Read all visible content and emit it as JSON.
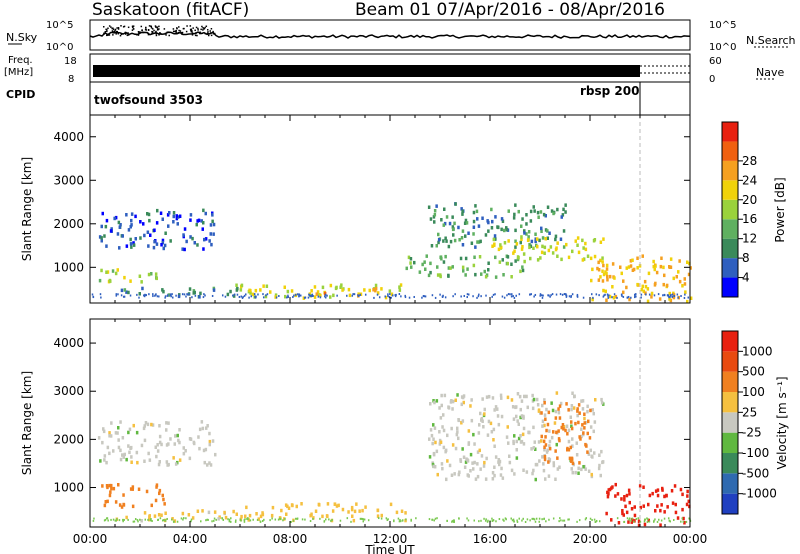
{
  "header": {
    "title": "Saskatoon (fitACF)",
    "beam_info": "Beam 01   07/Apr/2016 - 08/Apr/2016"
  },
  "left_labels": {
    "nsky": "N.Sky",
    "freq_line1": "Freq.",
    "freq_line2": "[MHz]",
    "cpid": "CPID"
  },
  "right_labels": {
    "nsearch": "N.Search",
    "nave": "Nave"
  },
  "strip_ticks": {
    "nsky_left": [
      "10^5",
      "10^0"
    ],
    "freq_left": [
      "18",
      "8"
    ],
    "nsearch_right": [
      "10^5",
      "10^0"
    ],
    "nave_right": [
      "60",
      "0"
    ]
  },
  "cpid_labels": [
    "twofsound 3503",
    "rbsp 200"
  ],
  "colorbars": {
    "power": {
      "label": "Power [dB]",
      "ticks": [
        "4",
        "8",
        "12",
        "16",
        "20",
        "24",
        "28"
      ],
      "colors": [
        "#0000ff",
        "#2f5fbf",
        "#3a8a5a",
        "#5fb060",
        "#9ad23c",
        "#f0d20a",
        "#f5a020",
        "#f06010",
        "#e82010"
      ]
    },
    "velocity": {
      "label": "Velocity [m s⁻¹]",
      "ticks": [
        "1000",
        "500",
        "100",
        "25",
        "-25",
        "-100",
        "-500",
        "-1000"
      ],
      "colors": [
        "#2040c0",
        "#2f6ab0",
        "#3a8a5a",
        "#60b840",
        "#c8c8c0",
        "#f5c040",
        "#f08020",
        "#e84a10",
        "#e82010"
      ]
    }
  },
  "chart_data": [
    {
      "type": "heatmap",
      "name": "power",
      "ylabel": "Slant Range [km]",
      "xlabel": "",
      "xlim": [
        "00:00",
        "24:00"
      ],
      "ylim": [
        180,
        4500
      ],
      "yticks": [
        1000,
        2000,
        3000,
        4000
      ],
      "blobs": [
        {
          "t0": 0.3,
          "t1": 5.0,
          "r0": 1450,
          "r1": 2350,
          "level": 6
        },
        {
          "t0": 0.3,
          "t1": 2.8,
          "r0": 700,
          "r1": 1000,
          "level": 18
        },
        {
          "t0": 1.0,
          "t1": 6.0,
          "r0": 350,
          "r1": 560,
          "level": 9
        },
        {
          "t0": 5.8,
          "t1": 12.6,
          "r0": 330,
          "r1": 650,
          "level": 20
        },
        {
          "t0": 9.0,
          "t1": 11.5,
          "r0": 380,
          "r1": 560,
          "level": 25
        },
        {
          "t0": 13.5,
          "t1": 19.0,
          "r0": 1500,
          "r1": 2500,
          "level": 10
        },
        {
          "t0": 12.6,
          "t1": 17.5,
          "r0": 800,
          "r1": 1300,
          "level": 14
        },
        {
          "t0": 16.0,
          "t1": 20.5,
          "r0": 1200,
          "r1": 1750,
          "level": 20
        },
        {
          "t0": 20.0,
          "t1": 24.0,
          "r0": 250,
          "r1": 1300,
          "level": 24
        }
      ]
    },
    {
      "type": "heatmap",
      "name": "velocity",
      "ylabel": "Slant Range [km]",
      "xlabel": "Time UT",
      "xlim": [
        "00:00",
        "24:00"
      ],
      "ylim": [
        180,
        4500
      ],
      "yticks": [
        1000,
        2000,
        3000,
        4000
      ],
      "xticks": [
        "00:00",
        "04:00",
        "08:00",
        "12:00",
        "16:00",
        "20:00",
        "00:00"
      ],
      "blobs": [
        {
          "t0": 0.3,
          "t1": 5.0,
          "r0": 1500,
          "r1": 2400,
          "level": 0
        },
        {
          "t0": 0.3,
          "t1": 3.0,
          "r0": 600,
          "r1": 1100,
          "level": -200
        },
        {
          "t0": 1.0,
          "t1": 6.0,
          "r0": 330,
          "r1": 560,
          "level": -40
        },
        {
          "t0": 6.0,
          "t1": 12.6,
          "r0": 330,
          "r1": 700,
          "level": -60
        },
        {
          "t0": 13.5,
          "t1": 20.5,
          "r0": 1200,
          "r1": 3000,
          "level": 0
        },
        {
          "t0": 18.0,
          "t1": 20.0,
          "r0": 1500,
          "r1": 2800,
          "level": -300
        },
        {
          "t0": 20.5,
          "t1": 24.0,
          "r0": 250,
          "r1": 1100,
          "level": -600
        }
      ]
    }
  ]
}
